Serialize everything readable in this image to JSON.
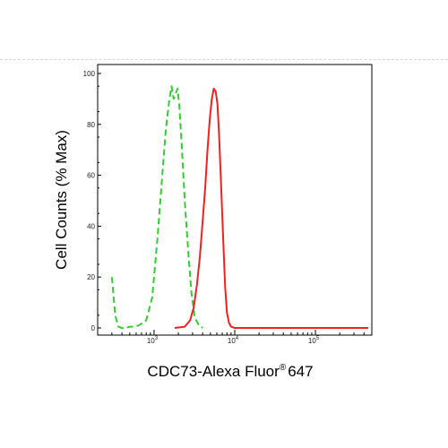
{
  "chart_data": {
    "type": "line",
    "title": "",
    "xlabel": "CDC73-Alexa Fluor",
    "xlabel_superscript": "®",
    "xlabel_suffix": "647",
    "ylabel": "Cell Counts (% Max)",
    "x_scale": "log",
    "xlim": [
      200,
      500000
    ],
    "ylim": [
      0,
      105
    ],
    "y_ticks": [
      0,
      20,
      40,
      60,
      80,
      100
    ],
    "y_tick_labels": [
      "0",
      "20",
      "40",
      "60",
      "80",
      "100"
    ],
    "x_ticks": [
      1000,
      10000,
      100000
    ],
    "x_tick_labels": [
      {
        "base": "10",
        "exp": "3"
      },
      {
        "base": "10",
        "exp": "4"
      },
      {
        "base": "10",
        "exp": "5"
      }
    ],
    "grid": false,
    "series": [
      {
        "color": "#33cc33",
        "dash": true,
        "x": [
          300,
          330,
          360,
          400,
          450,
          500,
          550,
          650,
          800,
          950,
          1100,
          1250,
          1400,
          1550,
          1650,
          1750,
          1850,
          1950,
          2050,
          2200,
          2400,
          2650,
          2900,
          3200,
          3600,
          4000
        ],
        "y": [
          20,
          5,
          0.5,
          0,
          0,
          0.5,
          0.5,
          1,
          3,
          12,
          35,
          58,
          78,
          90,
          95,
          90,
          92,
          94,
          88,
          72,
          50,
          30,
          14,
          4,
          1,
          0
        ]
      },
      {
        "color": "#ee2222",
        "dash": false,
        "x": [
          1800,
          2400,
          2800,
          3100,
          3400,
          3700,
          4000,
          4300,
          4600,
          4900,
          5200,
          5500,
          5800,
          6100,
          6400,
          6800,
          7200,
          7600,
          8000,
          8500,
          9000,
          10000,
          12000,
          20000,
          100000,
          450000
        ],
        "y": [
          0,
          0.5,
          3,
          8,
          17,
          28,
          42,
          55,
          70,
          82,
          90,
          94,
          93,
          88,
          76,
          55,
          34,
          16,
          6,
          2,
          0.5,
          0,
          0,
          0,
          0,
          0
        ]
      }
    ]
  }
}
